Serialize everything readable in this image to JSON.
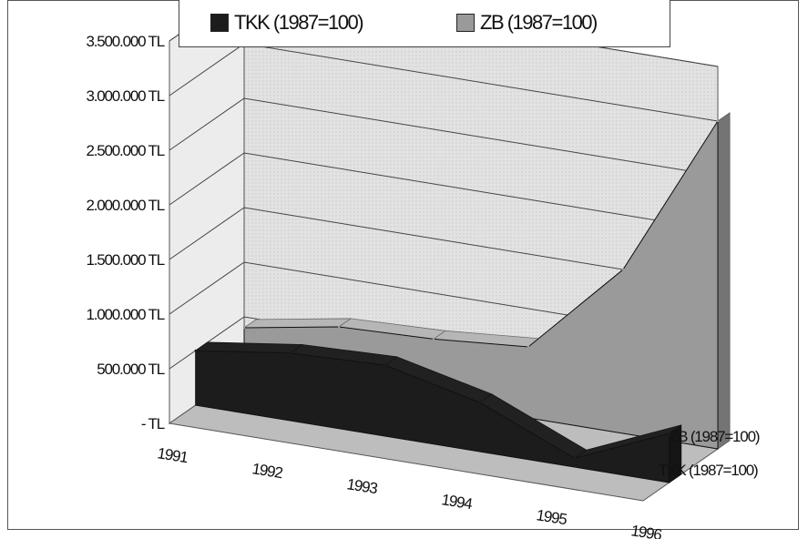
{
  "chart_data": {
    "type": "area",
    "view": "3d",
    "categories": [
      "1991",
      "1992",
      "1993",
      "1994",
      "1995",
      "1996"
    ],
    "series": [
      {
        "name": "TKK (1987=100)",
        "values": [
          500000,
          620000,
          650000,
          450000,
          80000,
          450000
        ],
        "color": "#1c1c1c"
      },
      {
        "name": "ZB (1987=100)",
        "values": [
          400000,
          550000,
          580000,
          650000,
          1500000,
          3000000
        ],
        "color": "#9a9a9a"
      }
    ],
    "y_ticks": [
      "-    TL",
      "500.000 TL",
      "1.000.000 TL",
      "1.500.000 TL",
      "2.000.000 TL",
      "2.500.000 TL",
      "3.000.000 TL",
      "3.500.000 TL"
    ],
    "ylim": [
      0,
      3500000
    ],
    "grid": true,
    "legend_position": "top"
  }
}
